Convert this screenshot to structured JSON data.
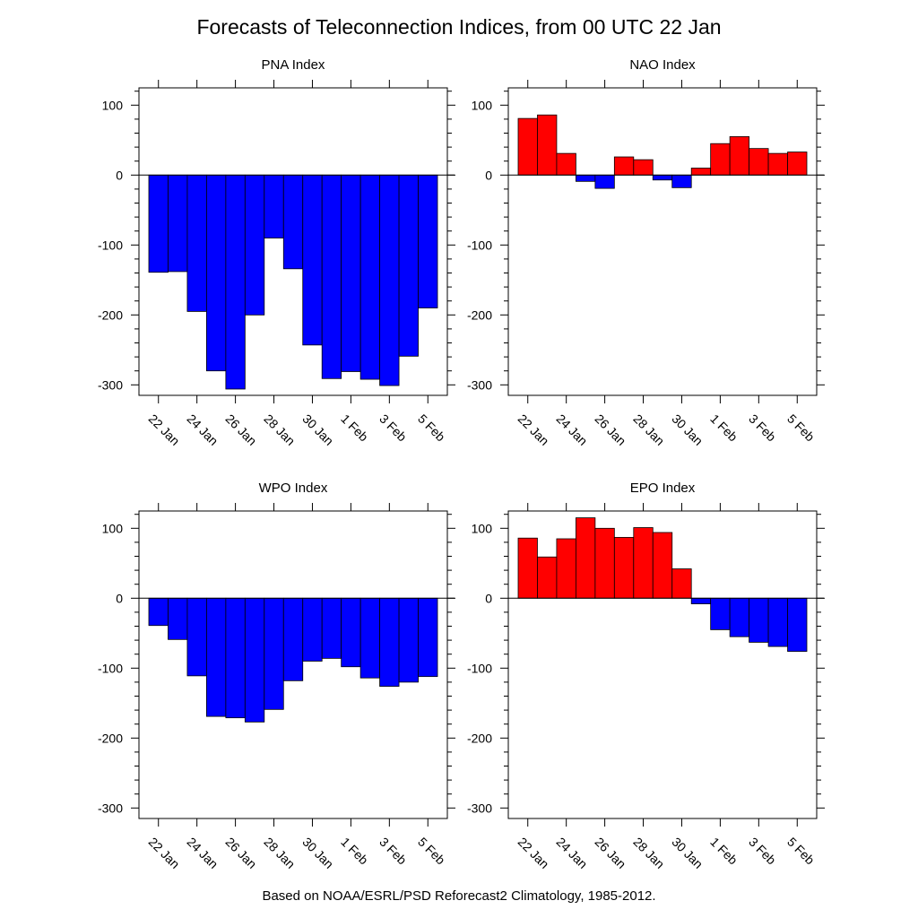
{
  "title": "Forecasts of Teleconnection Indices, from 00 UTC 22 Jan",
  "footer": "Based on NOAA/ESRL/PSD Reforecast2 Climatology, 1985-2012.",
  "colors": {
    "positive": "#ff0000",
    "negative": "#0000ff",
    "frame": "#000000"
  },
  "chart_data": [
    {
      "type": "bar",
      "title": "PNA Index",
      "categories": [
        "22 Jan",
        "23 Jan",
        "24 Jan",
        "25 Jan",
        "26 Jan",
        "27 Jan",
        "28 Jan",
        "29 Jan",
        "30 Jan",
        "31 Jan",
        "1 Feb",
        "2 Feb",
        "3 Feb",
        "4 Feb",
        "5 Feb"
      ],
      "values": [
        -139,
        -138,
        -195,
        -280,
        -306,
        -200,
        -90,
        -134,
        -243,
        -291,
        -281,
        -292,
        -301,
        -259,
        -190
      ],
      "xticks": [
        "22 Jan",
        "24 Jan",
        "26 Jan",
        "28 Jan",
        "30 Jan",
        "1 Feb",
        "3 Feb",
        "5 Feb"
      ],
      "yticks": [
        100,
        0,
        -100,
        -200,
        -300
      ],
      "ylim": [
        -315,
        125
      ],
      "xlabel": "",
      "ylabel": ""
    },
    {
      "type": "bar",
      "title": "NAO Index",
      "categories": [
        "22 Jan",
        "23 Jan",
        "24 Jan",
        "25 Jan",
        "26 Jan",
        "27 Jan",
        "28 Jan",
        "29 Jan",
        "30 Jan",
        "31 Jan",
        "1 Feb",
        "2 Feb",
        "3 Feb",
        "4 Feb",
        "5 Feb"
      ],
      "values": [
        81,
        86,
        31,
        -9,
        -19,
        26,
        22,
        -7,
        -18,
        10,
        45,
        55,
        38,
        31,
        33
      ],
      "xticks": [
        "22 Jan",
        "24 Jan",
        "26 Jan",
        "28 Jan",
        "30 Jan",
        "1 Feb",
        "3 Feb",
        "5 Feb"
      ],
      "yticks": [
        100,
        0,
        -100,
        -200,
        -300
      ],
      "ylim": [
        -315,
        125
      ],
      "xlabel": "",
      "ylabel": ""
    },
    {
      "type": "bar",
      "title": "WPO Index",
      "categories": [
        "22 Jan",
        "23 Jan",
        "24 Jan",
        "25 Jan",
        "26 Jan",
        "27 Jan",
        "28 Jan",
        "29 Jan",
        "30 Jan",
        "31 Jan",
        "1 Feb",
        "2 Feb",
        "3 Feb",
        "4 Feb",
        "5 Feb"
      ],
      "values": [
        -39,
        -59,
        -111,
        -169,
        -171,
        -177,
        -159,
        -118,
        -90,
        -86,
        -98,
        -114,
        -126,
        -120,
        -112
      ],
      "xticks": [
        "22 Jan",
        "24 Jan",
        "26 Jan",
        "28 Jan",
        "30 Jan",
        "1 Feb",
        "3 Feb",
        "5 Feb"
      ],
      "yticks": [
        100,
        0,
        -100,
        -200,
        -300
      ],
      "ylim": [
        -315,
        125
      ],
      "xlabel": "",
      "ylabel": ""
    },
    {
      "type": "bar",
      "title": "EPO Index",
      "categories": [
        "22 Jan",
        "23 Jan",
        "24 Jan",
        "25 Jan",
        "26 Jan",
        "27 Jan",
        "28 Jan",
        "29 Jan",
        "30 Jan",
        "31 Jan",
        "1 Feb",
        "2 Feb",
        "3 Feb",
        "4 Feb",
        "5 Feb"
      ],
      "values": [
        86,
        59,
        85,
        115,
        100,
        87,
        101,
        94,
        42,
        -8,
        -45,
        -55,
        -63,
        -69,
        -76
      ],
      "xticks": [
        "22 Jan",
        "24 Jan",
        "26 Jan",
        "28 Jan",
        "30 Jan",
        "1 Feb",
        "3 Feb",
        "5 Feb"
      ],
      "yticks": [
        100,
        0,
        -100,
        -200,
        -300
      ],
      "ylim": [
        -315,
        125
      ],
      "xlabel": "",
      "ylabel": ""
    }
  ]
}
